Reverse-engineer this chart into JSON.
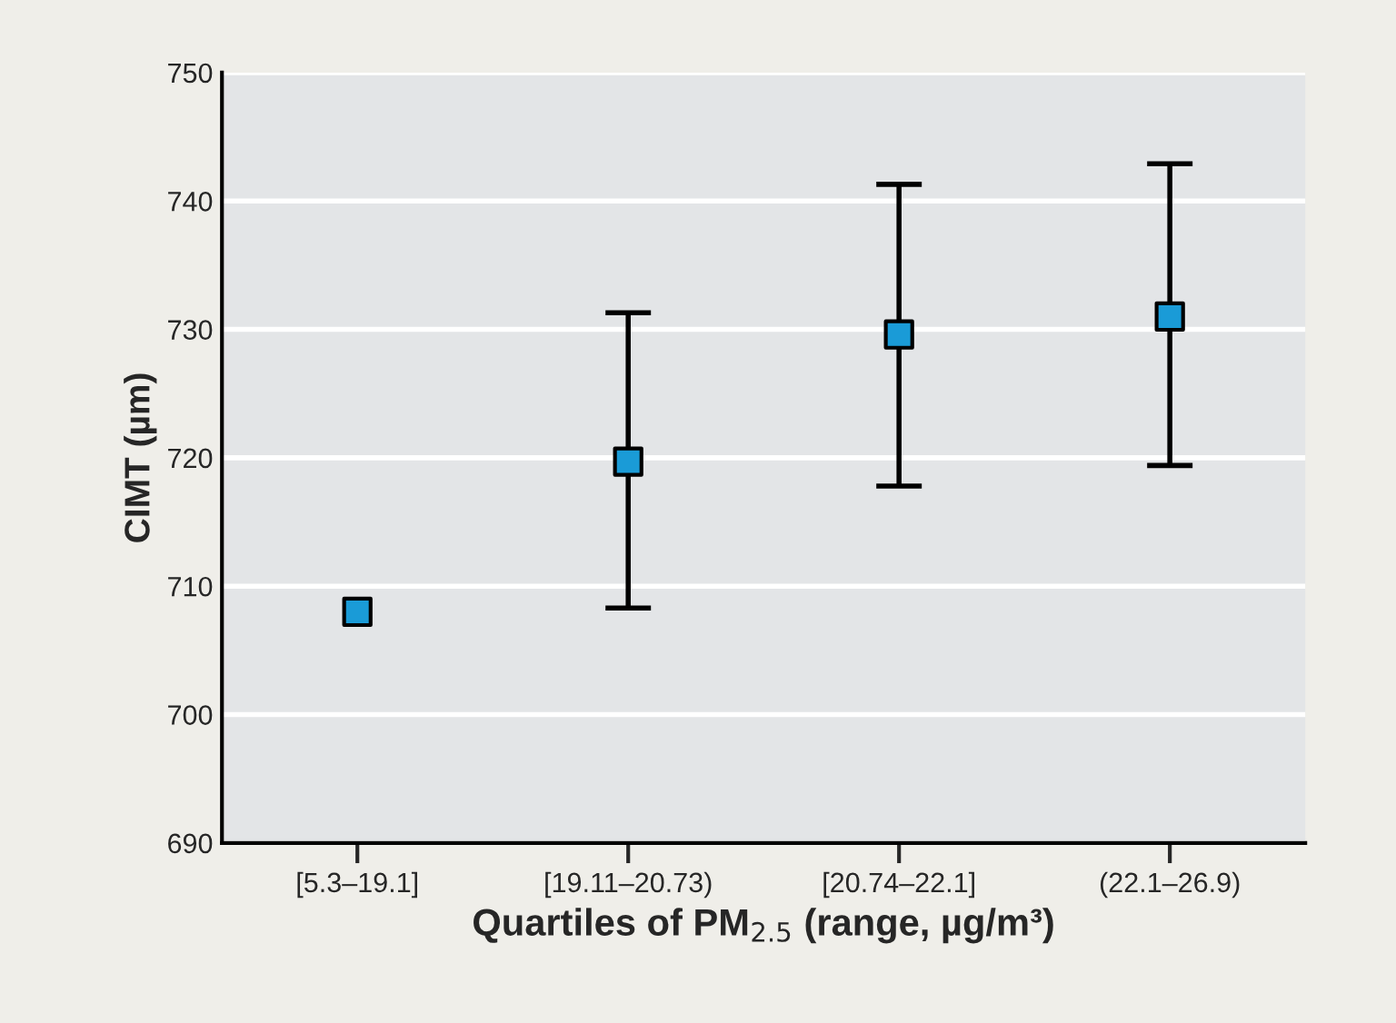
{
  "chart_data": {
    "type": "scatter",
    "xlabel": "Quartiles of PM$_{2.5}$ (range, µg/m³)",
    "ylabel": "CIMT (µm)",
    "categories": [
      "[5.3–19.1]",
      "[19.11–20.73)",
      "[20.74–22.1]",
      "(22.1–26.9)"
    ],
    "series": [
      {
        "color": "#1a9bd7",
        "values": [
          708.0,
          719.7,
          729.6,
          731.0
        ],
        "errors": [
          null,
          [
            708.3,
            731.3
          ],
          [
            717.8,
            741.3
          ],
          [
            719.4,
            742.9
          ]
        ]
      }
    ],
    "marker": "square",
    "ylim": [
      690,
      750
    ],
    "yticks": [
      690,
      700,
      710,
      720,
      730,
      740,
      750
    ],
    "grid": "y",
    "legend": false
  }
}
